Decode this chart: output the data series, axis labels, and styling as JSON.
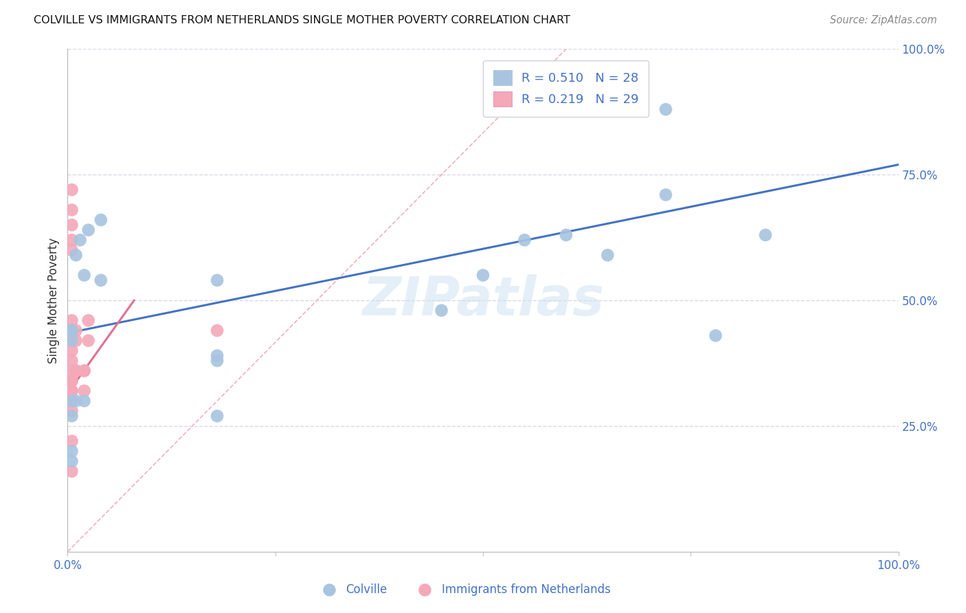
{
  "title": "COLVILLE VS IMMIGRANTS FROM NETHERLANDS SINGLE MOTHER POVERTY CORRELATION CHART",
  "source": "Source: ZipAtlas.com",
  "xlabel_colville": "Colville",
  "xlabel_netherlands": "Immigrants from Netherlands",
  "ylabel": "Single Mother Poverty",
  "xlim": [
    0,
    1
  ],
  "ylim": [
    0,
    1
  ],
  "xticks": [
    0,
    0.25,
    0.5,
    0.75,
    1.0
  ],
  "xtick_labels": [
    "0.0%",
    "",
    "",
    "",
    "100.0%"
  ],
  "ytick_labels_right": [
    "100.0%",
    "75.0%",
    "50.0%",
    "25.0%"
  ],
  "ytick_vals_right": [
    1.0,
    0.75,
    0.5,
    0.25
  ],
  "colville_color": "#a8c4e0",
  "netherlands_color": "#f4a8b8",
  "line_color_blue": "#4472c4",
  "line_color_pink": "#e07090",
  "diagonal_color": "#f0b0c0",
  "r_colville": 0.51,
  "n_colville": 28,
  "r_netherlands": 0.219,
  "n_netherlands": 29,
  "colville_x": [
    0.005,
    0.01,
    0.015,
    0.02,
    0.025,
    0.01,
    0.02,
    0.04,
    0.04,
    0.18,
    0.45,
    0.5,
    0.55,
    0.6,
    0.65,
    0.72,
    0.78,
    0.84,
    0.72,
    0.005,
    0.18,
    0.18,
    0.005,
    0.005,
    0.005,
    0.005,
    0.005,
    0.18
  ],
  "colville_y": [
    0.44,
    0.59,
    0.62,
    0.55,
    0.64,
    0.3,
    0.3,
    0.66,
    0.54,
    0.54,
    0.48,
    0.55,
    0.62,
    0.63,
    0.59,
    0.71,
    0.43,
    0.63,
    0.88,
    0.3,
    0.27,
    0.39,
    0.44,
    0.42,
    0.2,
    0.18,
    0.27,
    0.38
  ],
  "netherlands_x": [
    0.005,
    0.005,
    0.005,
    0.005,
    0.005,
    0.005,
    0.005,
    0.005,
    0.005,
    0.005,
    0.005,
    0.005,
    0.005,
    0.005,
    0.005,
    0.005,
    0.005,
    0.005,
    0.005,
    0.01,
    0.01,
    0.01,
    0.01,
    0.02,
    0.02,
    0.02,
    0.025,
    0.025,
    0.18
  ],
  "netherlands_y": [
    0.72,
    0.68,
    0.65,
    0.62,
    0.6,
    0.46,
    0.44,
    0.42,
    0.4,
    0.38,
    0.36,
    0.34,
    0.34,
    0.32,
    0.32,
    0.3,
    0.28,
    0.22,
    0.16,
    0.44,
    0.42,
    0.36,
    0.36,
    0.36,
    0.36,
    0.32,
    0.42,
    0.46,
    0.44
  ],
  "blue_line_x": [
    0,
    1.0
  ],
  "blue_line_y": [
    0.435,
    0.77
  ],
  "pink_line_x": [
    0.0,
    0.08
  ],
  "pink_line_y": [
    0.315,
    0.5
  ],
  "diag_line_x": [
    0,
    0.6
  ],
  "diag_line_y": [
    0,
    1.0
  ],
  "background_color": "#ffffff",
  "grid_color": "#d8d8e8"
}
